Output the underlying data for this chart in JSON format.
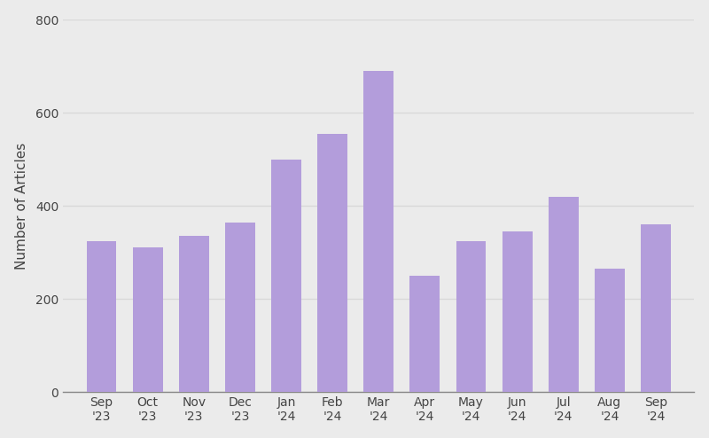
{
  "categories": [
    "Sep\n'23",
    "Oct\n'23",
    "Nov\n'23",
    "Dec\n'23",
    "Jan\n'24",
    "Feb\n'24",
    "Mar\n'24",
    "Apr\n'24",
    "May\n'24",
    "Jun\n'24",
    "Jul\n'24",
    "Aug\n'24",
    "Sep\n'24"
  ],
  "values": [
    325,
    310,
    335,
    365,
    500,
    555,
    690,
    250,
    325,
    345,
    420,
    265,
    360
  ],
  "bar_color": "#b39ddb",
  "background_color": "#ebebeb",
  "ylabel": "Number of Articles",
  "ylim": [
    0,
    800
  ],
  "yticks": [
    0,
    200,
    400,
    600,
    800
  ],
  "bar_width": 0.65,
  "grid_color": "#d8d8d8",
  "tick_label_color": "#444444",
  "ylabel_color": "#444444",
  "ylabel_fontsize": 11,
  "tick_fontsize": 10
}
